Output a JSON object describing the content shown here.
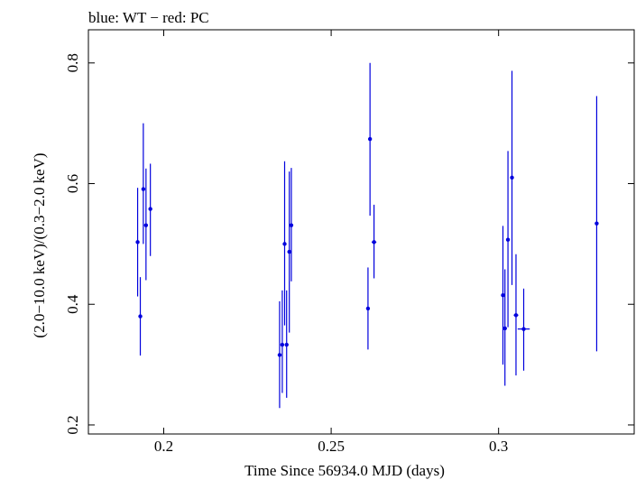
{
  "chart_data": {
    "type": "scatter",
    "title": "blue: WT − red: PC",
    "xlabel": "Time Since 56934.0 MJD (days)",
    "ylabel": "(2.0−10.0 keV)/(0.3−2.0 keV)",
    "xlim": [
      0.1775,
      0.3405
    ],
    "ylim": [
      0.185,
      0.855
    ],
    "xticks": [
      0.2,
      0.25,
      0.3
    ],
    "xtick_labels": [
      "0.2",
      "0.25",
      "0.3"
    ],
    "yticks": [
      0.2,
      0.4,
      0.6,
      0.8
    ],
    "ytick_labels": [
      "0.2",
      "0.4",
      "0.6",
      "0.8"
    ],
    "grid": false,
    "series": [
      {
        "color": "#0000dd",
        "points": [
          {
            "x": 0.1922,
            "y": 0.503,
            "ylo": 0.413,
            "yhi": 0.593,
            "xerr": 0.0003
          },
          {
            "x": 0.193,
            "y": 0.38,
            "ylo": 0.315,
            "yhi": 0.445,
            "xerr": 0.0003
          },
          {
            "x": 0.1939,
            "y": 0.591,
            "ylo": 0.5,
            "yhi": 0.7,
            "xerr": 0.0003
          },
          {
            "x": 0.1947,
            "y": 0.531,
            "ylo": 0.44,
            "yhi": 0.625,
            "xerr": 0.0003
          },
          {
            "x": 0.196,
            "y": 0.558,
            "ylo": 0.48,
            "yhi": 0.633,
            "xerr": 0.0004
          },
          {
            "x": 0.2346,
            "y": 0.316,
            "ylo": 0.228,
            "yhi": 0.405,
            "xerr": 0.0003
          },
          {
            "x": 0.2354,
            "y": 0.333,
            "ylo": 0.253,
            "yhi": 0.423,
            "xerr": 0.0003
          },
          {
            "x": 0.2361,
            "y": 0.5,
            "ylo": 0.365,
            "yhi": 0.637,
            "xerr": 0.0003
          },
          {
            "x": 0.2367,
            "y": 0.333,
            "ylo": 0.245,
            "yhi": 0.423,
            "xerr": 0.0003
          },
          {
            "x": 0.2375,
            "y": 0.487,
            "ylo": 0.353,
            "yhi": 0.62,
            "xerr": 0.0003
          },
          {
            "x": 0.2381,
            "y": 0.531,
            "ylo": 0.438,
            "yhi": 0.626,
            "xerr": 0.0004
          },
          {
            "x": 0.261,
            "y": 0.393,
            "ylo": 0.325,
            "yhi": 0.461,
            "xerr": 0.0003
          },
          {
            "x": 0.2616,
            "y": 0.674,
            "ylo": 0.547,
            "yhi": 0.8,
            "xerr": 0.0003
          },
          {
            "x": 0.2628,
            "y": 0.503,
            "ylo": 0.443,
            "yhi": 0.565,
            "xerr": 0.0007
          },
          {
            "x": 0.3013,
            "y": 0.415,
            "ylo": 0.3,
            "yhi": 0.53,
            "xerr": 0.0003
          },
          {
            "x": 0.3019,
            "y": 0.36,
            "ylo": 0.265,
            "yhi": 0.458,
            "xerr": 0.0003
          },
          {
            "x": 0.3028,
            "y": 0.507,
            "ylo": 0.362,
            "yhi": 0.654,
            "xerr": 0.0003
          },
          {
            "x": 0.304,
            "y": 0.61,
            "ylo": 0.432,
            "yhi": 0.787,
            "xerr": 0.0003
          },
          {
            "x": 0.3052,
            "y": 0.382,
            "ylo": 0.282,
            "yhi": 0.483,
            "xerr": 0.0007
          },
          {
            "x": 0.3075,
            "y": 0.359,
            "ylo": 0.29,
            "yhi": 0.426,
            "xerr": 0.0018
          },
          {
            "x": 0.3293,
            "y": 0.534,
            "ylo": 0.322,
            "yhi": 0.745,
            "xerr": 0.0003
          }
        ]
      }
    ]
  }
}
